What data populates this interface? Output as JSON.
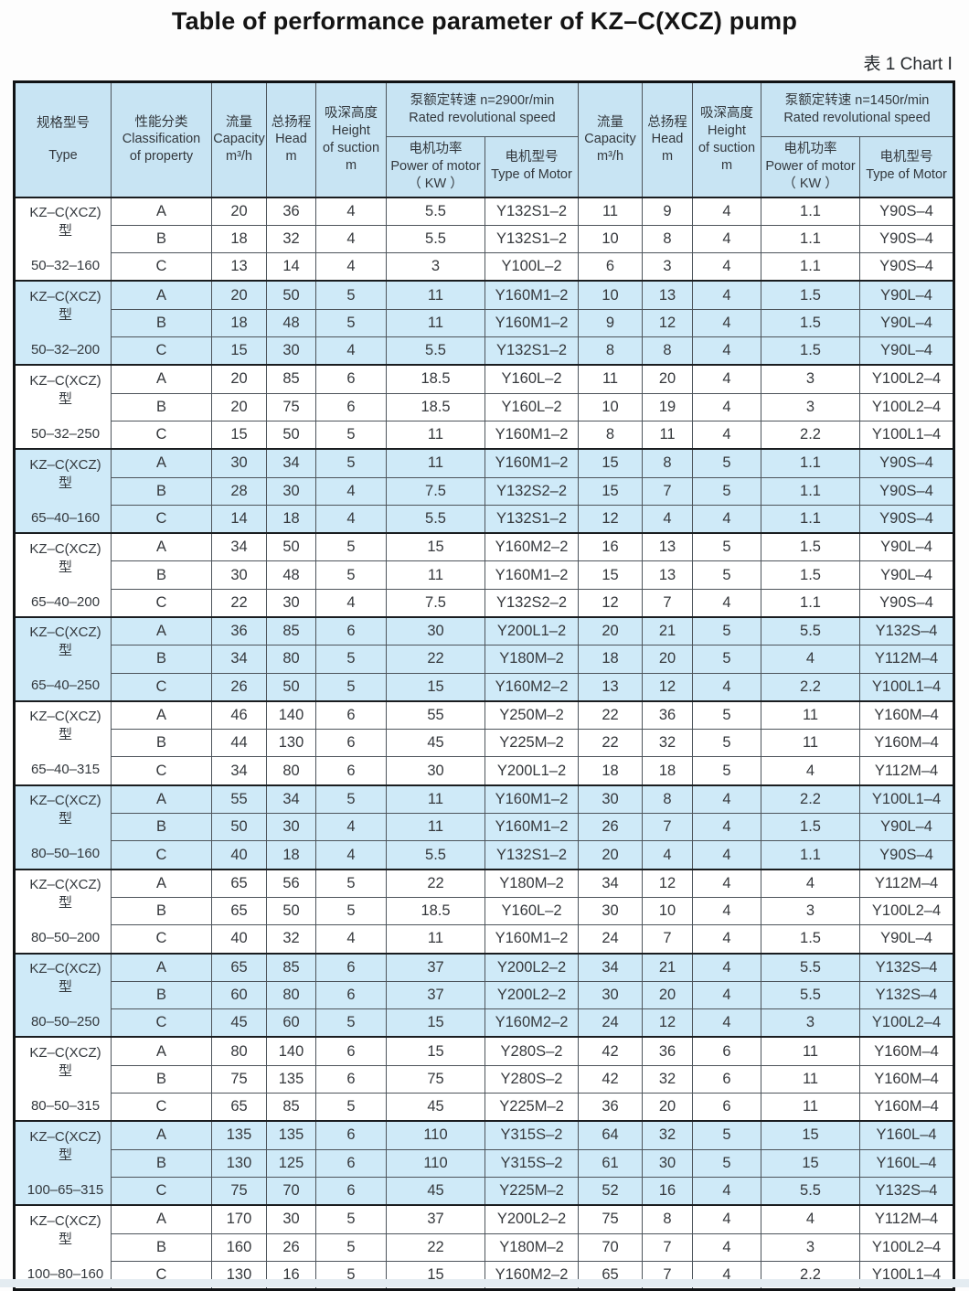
{
  "title": "Table of performance parameter of KZ–C(XCZ) pump",
  "caption": "表 1  Chart Ⅰ",
  "colors": {
    "header_bg": "#c8e4f3",
    "row_blue": "#cfeaf8",
    "row_white": "#ffffff",
    "border_dark": "#4d545b",
    "outer_border": "#101214"
  },
  "header": {
    "type_cn": "规格型号",
    "type_en": "Type",
    "class_cn": "性能分类",
    "class_en1": "Classification",
    "class_en2": "of property",
    "cap_cn": "流量",
    "cap_en": "Capacity",
    "cap_unit": "m³/h",
    "head_cn": "总扬程",
    "head_en": "Head",
    "head_unit": "m",
    "suc_cn": "吸深高度",
    "suc_en1": "Height",
    "suc_en2": "of suction",
    "suc_unit": "m",
    "n2900_cn": "泵额定转速 n=2900r/min",
    "n2900_en": "Rated revolutional speed",
    "n1450_cn": "泵额定转速 n=1450r/min",
    "n1450_en": "Rated revolutional speed",
    "pow_cn": "电机功率",
    "pow_en": "Power of motor",
    "pow_unit": "（ KW ）",
    "mot_cn": "电机型号",
    "mot_en": "Type of Motor"
  },
  "row_fields": [
    "classification",
    "capacity-2900",
    "head-2900",
    "suction-2900",
    "power-2900",
    "motor-2900",
    "capacity-1450",
    "head-1450",
    "suction-1450",
    "power-1450",
    "motor-1450"
  ],
  "groups": [
    {
      "series": "KZ–C(XCZ) 型",
      "model": "50–32–160",
      "rows": [
        [
          "A",
          "20",
          "36",
          "4",
          "5.5",
          "Y132S1–2",
          "11",
          "9",
          "4",
          "1.1",
          "Y90S–4"
        ],
        [
          "B",
          "18",
          "32",
          "4",
          "5.5",
          "Y132S1–2",
          "10",
          "8",
          "4",
          "1.1",
          "Y90S–4"
        ],
        [
          "C",
          "13",
          "14",
          "4",
          "3",
          "Y100L–2",
          "6",
          "3",
          "4",
          "1.1",
          "Y90S–4"
        ]
      ]
    },
    {
      "series": "KZ–C(XCZ) 型",
      "model": "50–32–200",
      "rows": [
        [
          "A",
          "20",
          "50",
          "5",
          "11",
          "Y160M1–2",
          "10",
          "13",
          "4",
          "1.5",
          "Y90L–4"
        ],
        [
          "B",
          "18",
          "48",
          "5",
          "11",
          "Y160M1–2",
          "9",
          "12",
          "4",
          "1.5",
          "Y90L–4"
        ],
        [
          "C",
          "15",
          "30",
          "4",
          "5.5",
          "Y132S1–2",
          "8",
          "8",
          "4",
          "1.5",
          "Y90L–4"
        ]
      ]
    },
    {
      "series": "KZ–C(XCZ) 型",
      "model": "50–32–250",
      "rows": [
        [
          "A",
          "20",
          "85",
          "6",
          "18.5",
          "Y160L–2",
          "11",
          "20",
          "4",
          "3",
          "Y100L2–4"
        ],
        [
          "B",
          "20",
          "75",
          "6",
          "18.5",
          "Y160L–2",
          "10",
          "19",
          "4",
          "3",
          "Y100L2–4"
        ],
        [
          "C",
          "15",
          "50",
          "5",
          "11",
          "Y160M1–2",
          "8",
          "11",
          "4",
          "2.2",
          "Y100L1–4"
        ]
      ]
    },
    {
      "series": "KZ–C(XCZ) 型",
      "model": "65–40–160",
      "rows": [
        [
          "A",
          "30",
          "34",
          "5",
          "11",
          "Y160M1–2",
          "15",
          "8",
          "5",
          "1.1",
          "Y90S–4"
        ],
        [
          "B",
          "28",
          "30",
          "4",
          "7.5",
          "Y132S2–2",
          "15",
          "7",
          "5",
          "1.1",
          "Y90S–4"
        ],
        [
          "C",
          "14",
          "18",
          "4",
          "5.5",
          "Y132S1–2",
          "12",
          "4",
          "4",
          "1.1",
          "Y90S–4"
        ]
      ]
    },
    {
      "series": "KZ–C(XCZ) 型",
      "model": "65–40–200",
      "rows": [
        [
          "A",
          "34",
          "50",
          "5",
          "15",
          "Y160M2–2",
          "16",
          "13",
          "5",
          "1.5",
          "Y90L–4"
        ],
        [
          "B",
          "30",
          "48",
          "5",
          "11",
          "Y160M1–2",
          "15",
          "13",
          "5",
          "1.5",
          "Y90L–4"
        ],
        [
          "C",
          "22",
          "30",
          "4",
          "7.5",
          "Y132S2–2",
          "12",
          "7",
          "4",
          "1.1",
          "Y90S–4"
        ]
      ]
    },
    {
      "series": "KZ–C(XCZ) 型",
      "model": "65–40–250",
      "rows": [
        [
          "A",
          "36",
          "85",
          "6",
          "30",
          "Y200L1–2",
          "20",
          "21",
          "5",
          "5.5",
          "Y132S–4"
        ],
        [
          "B",
          "34",
          "80",
          "5",
          "22",
          "Y180M–2",
          "18",
          "20",
          "5",
          "4",
          "Y112M–4"
        ],
        [
          "C",
          "26",
          "50",
          "5",
          "15",
          "Y160M2–2",
          "13",
          "12",
          "4",
          "2.2",
          "Y100L1–4"
        ]
      ]
    },
    {
      "series": "KZ–C(XCZ) 型",
      "model": "65–40–315",
      "rows": [
        [
          "A",
          "46",
          "140",
          "6",
          "55",
          "Y250M–2",
          "22",
          "36",
          "5",
          "11",
          "Y160M–4"
        ],
        [
          "B",
          "44",
          "130",
          "6",
          "45",
          "Y225M–2",
          "22",
          "32",
          "5",
          "11",
          "Y160M–4"
        ],
        [
          "C",
          "34",
          "80",
          "6",
          "30",
          "Y200L1–2",
          "18",
          "18",
          "5",
          "4",
          "Y112M–4"
        ]
      ]
    },
    {
      "series": "KZ–C(XCZ) 型",
      "model": "80–50–160",
      "rows": [
        [
          "A",
          "55",
          "34",
          "5",
          "11",
          "Y160M1–2",
          "30",
          "8",
          "4",
          "2.2",
          "Y100L1–4"
        ],
        [
          "B",
          "50",
          "30",
          "4",
          "11",
          "Y160M1–2",
          "26",
          "7",
          "4",
          "1.5",
          "Y90L–4"
        ],
        [
          "C",
          "40",
          "18",
          "4",
          "5.5",
          "Y132S1–2",
          "20",
          "4",
          "4",
          "1.1",
          "Y90S–4"
        ]
      ]
    },
    {
      "series": "KZ–C(XCZ) 型",
      "model": "80–50–200",
      "rows": [
        [
          "A",
          "65",
          "56",
          "5",
          "22",
          "Y180M–2",
          "34",
          "12",
          "4",
          "4",
          "Y112M–4"
        ],
        [
          "B",
          "65",
          "50",
          "5",
          "18.5",
          "Y160L–2",
          "30",
          "10",
          "4",
          "3",
          "Y100L2–4"
        ],
        [
          "C",
          "40",
          "32",
          "4",
          "11",
          "Y160M1–2",
          "24",
          "7",
          "4",
          "1.5",
          "Y90L–4"
        ]
      ]
    },
    {
      "series": "KZ–C(XCZ) 型",
      "model": "80–50–250",
      "rows": [
        [
          "A",
          "65",
          "85",
          "6",
          "37",
          "Y200L2–2",
          "34",
          "21",
          "4",
          "5.5",
          "Y132S–4"
        ],
        [
          "B",
          "60",
          "80",
          "6",
          "37",
          "Y200L2–2",
          "30",
          "20",
          "4",
          "5.5",
          "Y132S–4"
        ],
        [
          "C",
          "45",
          "60",
          "5",
          "15",
          "Y160M2–2",
          "24",
          "12",
          "4",
          "3",
          "Y100L2–4"
        ]
      ]
    },
    {
      "series": "KZ–C(XCZ) 型",
      "model": "80–50–315",
      "rows": [
        [
          "A",
          "80",
          "140",
          "6",
          "15",
          "Y280S–2",
          "42",
          "36",
          "6",
          "11",
          "Y160M–4"
        ],
        [
          "B",
          "75",
          "135",
          "6",
          "75",
          "Y280S–2",
          "42",
          "32",
          "6",
          "11",
          "Y160M–4"
        ],
        [
          "C",
          "65",
          "85",
          "5",
          "45",
          "Y225M–2",
          "36",
          "20",
          "6",
          "11",
          "Y160M–4"
        ]
      ]
    },
    {
      "series": "KZ–C(XCZ) 型",
      "model": "100–65–315",
      "rows": [
        [
          "A",
          "135",
          "135",
          "6",
          "110",
          "Y315S–2",
          "64",
          "32",
          "5",
          "15",
          "Y160L–4"
        ],
        [
          "B",
          "130",
          "125",
          "6",
          "110",
          "Y315S–2",
          "61",
          "30",
          "5",
          "15",
          "Y160L–4"
        ],
        [
          "C",
          "75",
          "70",
          "6",
          "45",
          "Y225M–2",
          "52",
          "16",
          "4",
          "5.5",
          "Y132S–4"
        ]
      ]
    },
    {
      "series": "KZ–C(XCZ) 型",
      "model": "100–80–160",
      "rows": [
        [
          "A",
          "170",
          "30",
          "5",
          "37",
          "Y200L2–2",
          "75",
          "8",
          "4",
          "4",
          "Y112M–4"
        ],
        [
          "B",
          "160",
          "26",
          "5",
          "22",
          "Y180M–2",
          "70",
          "7",
          "4",
          "3",
          "Y100L2–4"
        ],
        [
          "C",
          "130",
          "16",
          "5",
          "15",
          "Y160M2–2",
          "65",
          "7",
          "4",
          "2.2",
          "Y100L1–4"
        ]
      ]
    }
  ]
}
